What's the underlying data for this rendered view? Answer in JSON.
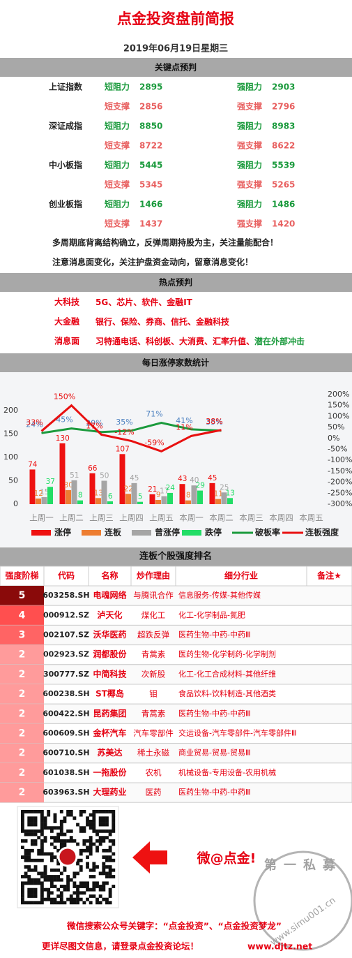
{
  "header": {
    "title": "点金投资盘前简报",
    "date": "2019年06月19日星期三"
  },
  "key_levels": {
    "title": "关键点预判",
    "labels": {
      "short_resistance": "短阻力",
      "strong_resistance": "强阻力",
      "short_support": "短支撑",
      "strong_support": "强支撑"
    },
    "indices": [
      {
        "name": "上证指数",
        "short_resistance": 2895,
        "strong_resistance": 2903,
        "short_support": 2856,
        "strong_support": 2796
      },
      {
        "name": "深证成指",
        "short_resistance": 8850,
        "strong_resistance": 8983,
        "short_support": 8722,
        "strong_support": 8622
      },
      {
        "name": "中小板指",
        "short_resistance": 5445,
        "strong_resistance": 5539,
        "short_support": 5345,
        "strong_support": 5265
      },
      {
        "name": "创业板指",
        "short_resistance": 1466,
        "strong_resistance": 1486,
        "short_support": 1437,
        "strong_support": 1420
      }
    ],
    "notes": [
      "多周期底背离结构确立，反弹周期持股为主，关注量能配合！",
      "注意消息面变化，关注护盘资金动向，留意消息变化！"
    ]
  },
  "hot_topics": {
    "title": "热点预判",
    "rows": [
      {
        "label": "大科技",
        "text": "5G、芯片、软件、金融IT"
      },
      {
        "label": "大金融",
        "text": "银行、保险、券商、信托、金融科技"
      },
      {
        "label": "消息面",
        "text": "习特通电话、科创板、大消费、汇率升值、",
        "highlight": "潜在外部冲击"
      }
    ]
  },
  "chart_data": {
    "type": "bar",
    "title": "每日涨停家数统计",
    "categories": [
      "上周一",
      "上周二",
      "上周三",
      "上周四",
      "上周五",
      "本周一",
      "本周二",
      "本周三",
      "本周四",
      "本周五"
    ],
    "ylim": [
      0,
      200
    ],
    "yticks": [
      0,
      50,
      100,
      150,
      200
    ],
    "y2lim": [
      -300,
      200
    ],
    "y2ticks": [
      {
        "value": -300,
        "label": "-300%"
      },
      {
        "value": -250,
        "label": "-250%"
      },
      {
        "value": -200,
        "label": "-200%"
      },
      {
        "value": -150,
        "label": "-150%"
      },
      {
        "value": -100,
        "label": "-100%"
      },
      {
        "value": -50,
        "label": "-50%"
      },
      {
        "value": 0,
        "label": "0%"
      },
      {
        "value": 50,
        "label": "50%"
      },
      {
        "value": 100,
        "label": "100%"
      },
      {
        "value": 150,
        "label": "150%"
      },
      {
        "value": 200,
        "label": "200%"
      }
    ],
    "series": [
      {
        "name": "涨停",
        "color": "#ee1111",
        "values": [
          74,
          130,
          66,
          107,
          21,
          43,
          45,
          null,
          null,
          null
        ]
      },
      {
        "name": "连板",
        "color": "#ed7d31",
        "values": [
          12,
          30,
          13,
          22,
          9,
          8,
          11,
          null,
          null,
          null
        ]
      },
      {
        "name": "曾涨停",
        "color": "#a5a5a5",
        "values": [
          15,
          51,
          50,
          45,
          17,
          40,
          25,
          null,
          null,
          null
        ]
      },
      {
        "name": "跌停",
        "color": "#22dd66",
        "values": [
          37,
          8,
          6,
          5,
          24,
          29,
          13,
          null,
          null,
          null
        ]
      },
      {
        "name": "破板率",
        "color": "#1a9a3c",
        "type": "line",
        "axis": "y2",
        "label_color": "#4a7fbf",
        "values": [
          24,
          45,
          29,
          35,
          71,
          41,
          35,
          null,
          null,
          null
        ],
        "value_labels": [
          "24%",
          "45%",
          "29%",
          "35%",
          "71%",
          "41%",
          "35%",
          null,
          null,
          null
        ]
      },
      {
        "name": "连板强度",
        "color": "#e81010",
        "type": "line",
        "axis": "y2",
        "label_color": "#e81010",
        "values": [
          33,
          150,
          17,
          -12,
          -59,
          11,
          38,
          null,
          null,
          null
        ],
        "value_labels": [
          "33%",
          "150%",
          "17%",
          "-12%",
          "-59%",
          "11%",
          "38%",
          null,
          null,
          null
        ]
      }
    ]
  },
  "ranking": {
    "title": "连板个股强度排名",
    "columns": [
      "强度阶梯",
      "代码",
      "名称",
      "炒作理由",
      "细分行业",
      "备注★"
    ],
    "rows": [
      [
        5,
        "603258.SH",
        "电魂网络",
        "与腾讯合作",
        "信息服务-传媒-其他传媒"
      ],
      [
        4,
        "000912.SZ",
        "泸天化",
        "煤化工",
        "化工-化学制品-氮肥"
      ],
      [
        3,
        "002107.SZ",
        "沃华医药",
        "超跌反弹",
        "医药生物-中药-中药Ⅲ"
      ],
      [
        2,
        "002923.SZ",
        "润都股份",
        "青蒿素",
        "医药生物-化学制药-化学制剂"
      ],
      [
        2,
        "300777.SZ",
        "中简科技",
        "次新股",
        "化工-化工合成材料-其他纤维"
      ],
      [
        2,
        "600238.SH",
        "ST椰岛",
        "钼",
        "食品饮料-饮料制造-其他酒类"
      ],
      [
        2,
        "600422.SH",
        "昆药集团",
        "青蒿素",
        "医药生物-中药-中药Ⅲ"
      ],
      [
        2,
        "600609.SH",
        "金杯汽车",
        "汽车零部件",
        "交运设备-汽车零部件-汽车零部件Ⅲ"
      ],
      [
        2,
        "600710.SH",
        "苏美达",
        "稀土永磁",
        "商业贸易-贸易-贸易Ⅲ"
      ],
      [
        2,
        "601038.SH",
        "一拖股份",
        "农机",
        "机械设备-专用设备-农用机械"
      ],
      [
        2,
        "603963.SH",
        "大理药业",
        "医药",
        "医药生物-中药-中药Ⅲ"
      ]
    ]
  },
  "footer": {
    "slogan": "微@点金!",
    "search": "微信搜索公众号关键字：“点金投资”、“点金投资梦龙”",
    "more": "更详尽图文信息，请登录点金投资论坛！",
    "url": "www.djtz.net",
    "watermark": {
      "name": "第一私募",
      "url": "www.simu001.cn"
    }
  }
}
